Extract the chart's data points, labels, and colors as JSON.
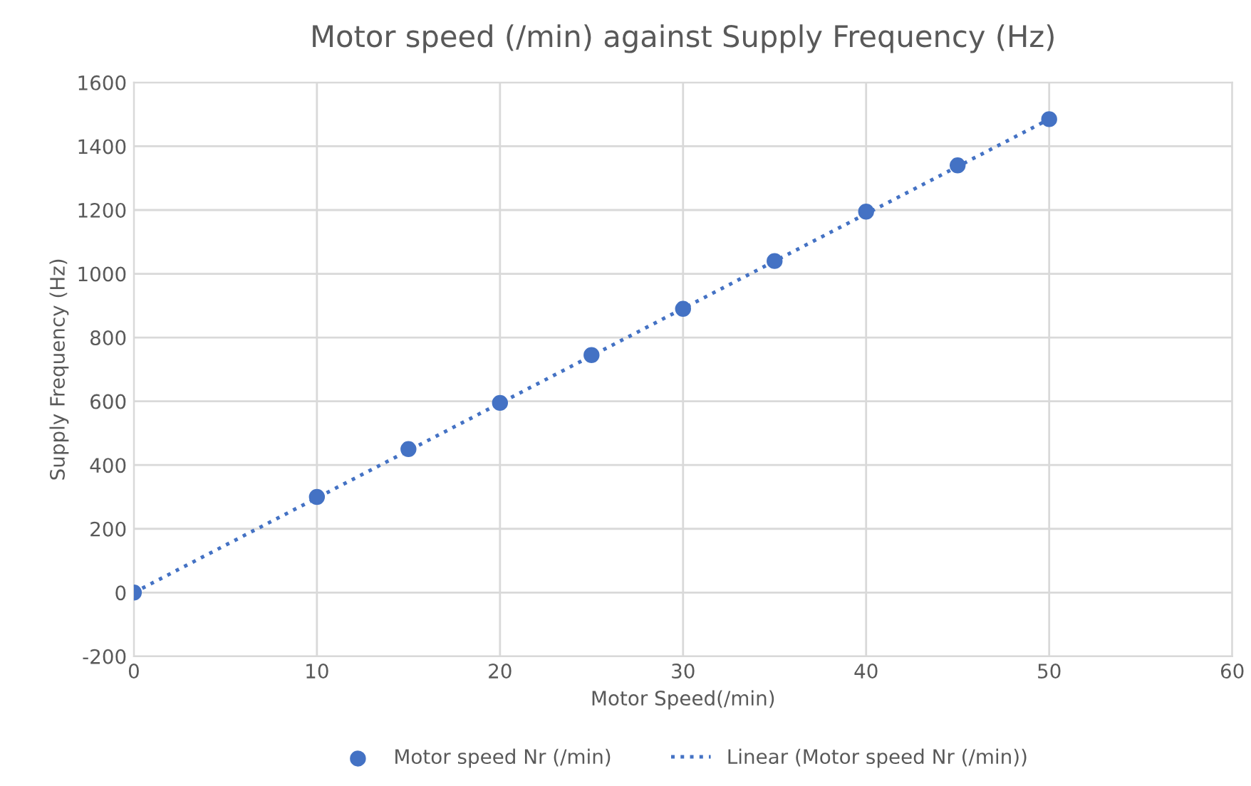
{
  "chart_data": {
    "type": "scatter",
    "title": "Motor speed (/min) against Supply Frequency (Hz)",
    "xlabel": "Motor Speed(/min)",
    "ylabel": "Supply Frequency (Hz)",
    "series": [
      {
        "name": "Motor speed Nr (/min)",
        "color": "#4472c4",
        "marker": "circle",
        "x": [
          0,
          10,
          15,
          20,
          25,
          30,
          35,
          40,
          45,
          50
        ],
        "values": [
          0,
          300,
          450,
          595,
          745,
          890,
          1040,
          1195,
          1340,
          1485
        ]
      },
      {
        "name": "Linear (Motor speed Nr (/min))",
        "type": "line",
        "color": "#4472c4",
        "line_style": "dotted",
        "marker": "none",
        "x": [
          0,
          50
        ],
        "values": [
          0,
          1485
        ]
      }
    ],
    "xlim": [
      0,
      60
    ],
    "xticks": [
      0,
      10,
      20,
      30,
      40,
      50,
      60
    ],
    "ylim": [
      -200,
      1600
    ],
    "yticks": [
      -200,
      0,
      200,
      400,
      600,
      800,
      1000,
      1200,
      1400,
      1600
    ],
    "grid": true,
    "legend": "bottom"
  }
}
